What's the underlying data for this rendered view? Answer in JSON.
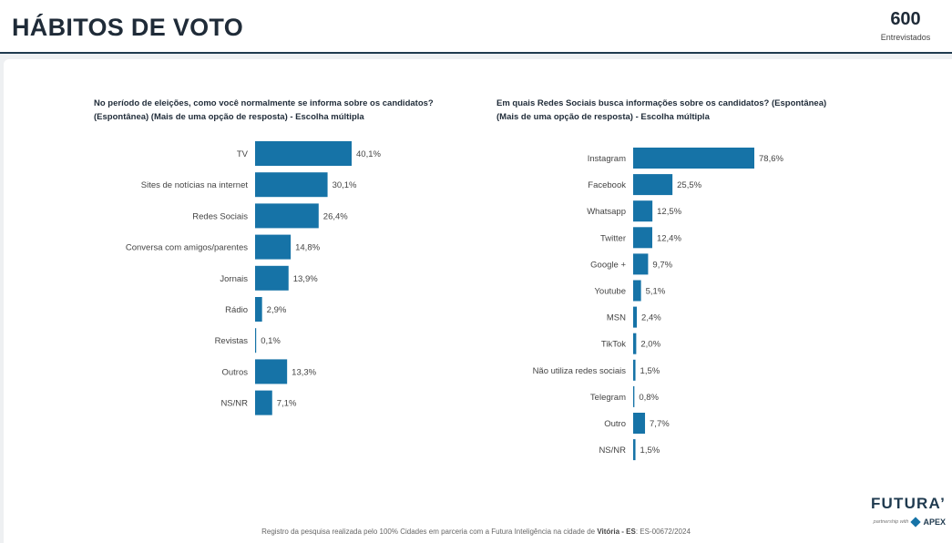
{
  "header": {
    "title": "HÁBITOS DE VOTO",
    "count": "600",
    "count_label": "Entrevistados"
  },
  "footer": {
    "note_prefix": "Registro da pesquisa realizada pelo 100% Cidades em parceria com a Futura Inteligência na cidade de ",
    "note_city": "Vitória - ES",
    "note_suffix": ": ES-00672/2024"
  },
  "brand": {
    "name": "FUTURA’",
    "partner": "partnership with",
    "partner_name": "APEX"
  },
  "colors": {
    "bar": "#1673a7",
    "title": "#1f2b38",
    "accent_line": "#1f3a4f"
  },
  "chart_data": [
    {
      "type": "bar",
      "orientation": "horizontal",
      "title": "No período de eleições, como você normalmente se informa sobre os candidatos? (Espontânea) (Mais de uma opção de resposta) - Escolha múltipla",
      "categories": [
        "TV",
        "Sites de notícias na internet",
        "Redes Sociais",
        "Conversa com amigos/parentes",
        "Jornais",
        "Rádio",
        "Revistas",
        "Outros",
        "NS/NR"
      ],
      "values": [
        40.1,
        30.1,
        26.4,
        14.8,
        13.9,
        2.9,
        0.1,
        13.3,
        7.1
      ],
      "labels": [
        "40,1%",
        "30,1%",
        "26,4%",
        "14,8%",
        "13,9%",
        "2,9%",
        "0,1%",
        "13,3%",
        "7,1%"
      ],
      "unit": "%",
      "grid": false,
      "legend": "none"
    },
    {
      "type": "bar",
      "orientation": "horizontal",
      "title": "Em quais Redes Sociais busca informações sobre os candidatos? (Espontânea) (Mais de uma opção de resposta) - Escolha múltipla",
      "categories": [
        "Instagram",
        "Facebook",
        "Whatsapp",
        "Twitter",
        "Google +",
        "Youtube",
        "MSN",
        "TikTok",
        "Não utiliza redes sociais",
        "Telegram",
        "Outro",
        "NS/NR"
      ],
      "values": [
        78.6,
        25.5,
        12.5,
        12.4,
        9.7,
        5.1,
        2.4,
        2.0,
        1.5,
        0.8,
        7.7,
        1.5
      ],
      "labels": [
        "78,6%",
        "25,5%",
        "12,5%",
        "12,4%",
        "9,7%",
        "5,1%",
        "2,4%",
        "2,0%",
        "1,5%",
        "0,8%",
        "7,7%",
        "1,5%"
      ],
      "unit": "%",
      "grid": false,
      "legend": "none"
    }
  ]
}
